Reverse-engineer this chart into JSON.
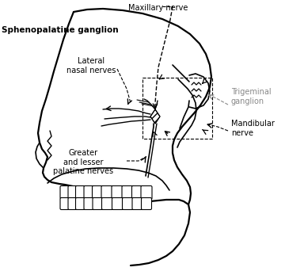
{
  "bg_color": "#ffffff",
  "black": "#000000",
  "gray": "#888888",
  "labels": {
    "maxillary_nerve": "Maxillary nerve",
    "sphenopalatine": "Sphenopalatine ganglion",
    "lateral_nasal": "Lateral\nnasal nerves",
    "trigeminal": "Trigeminal\nganglion",
    "mandibular": "Mandibular\nnerve",
    "greater_lesser": "Greater\nand lesser\npalatine nerves"
  },
  "figsize": [
    3.6,
    3.47
  ],
  "dpi": 100
}
